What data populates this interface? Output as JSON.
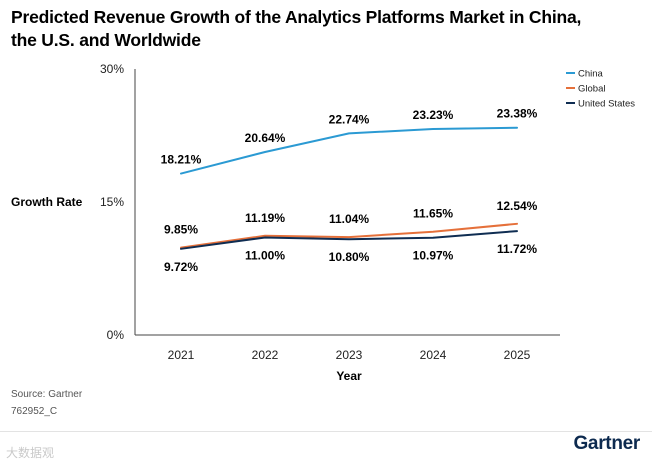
{
  "title_line1": "Predicted Revenue Growth of the Analytics Platforms Market in China,",
  "title_line2": "the U.S. and Worldwide",
  "source": "Source: Gartner",
  "doc_id": "762952_C",
  "brand": "Gartner",
  "watermark": "大数据观",
  "colors": {
    "China": "#2b9ad3",
    "Global": "#e5703a",
    "United States": "#0f2d52",
    "axis": "#444444"
  },
  "chart_data": {
    "type": "line",
    "title": "Predicted Revenue Growth of the Analytics Platforms Market in China, the U.S. and Worldwide",
    "xlabel": "Year",
    "ylabel": "Growth Rate",
    "x": [
      "2021",
      "2022",
      "2023",
      "2024",
      "2025"
    ],
    "ylim": [
      0,
      30
    ],
    "yticks": [
      0,
      15,
      30
    ],
    "ytick_labels": [
      "0%",
      "15%",
      "30%"
    ],
    "grid": false,
    "legend": "top-right",
    "series": [
      {
        "name": "China",
        "values": [
          18.21,
          20.64,
          22.74,
          23.23,
          23.38
        ],
        "labels": [
          "18.21%",
          "20.64%",
          "22.74%",
          "23.23%",
          "23.38%"
        ]
      },
      {
        "name": "Global",
        "values": [
          9.85,
          11.19,
          11.04,
          11.65,
          12.54
        ],
        "labels": [
          "9.85%",
          "11.19%",
          "11.04%",
          "11.65%",
          "12.54%"
        ]
      },
      {
        "name": "United States",
        "values": [
          9.72,
          11.0,
          10.8,
          10.97,
          11.72
        ],
        "labels": [
          "9.72%",
          "11.00%",
          "10.80%",
          "10.97%",
          "11.72%"
        ]
      }
    ]
  }
}
